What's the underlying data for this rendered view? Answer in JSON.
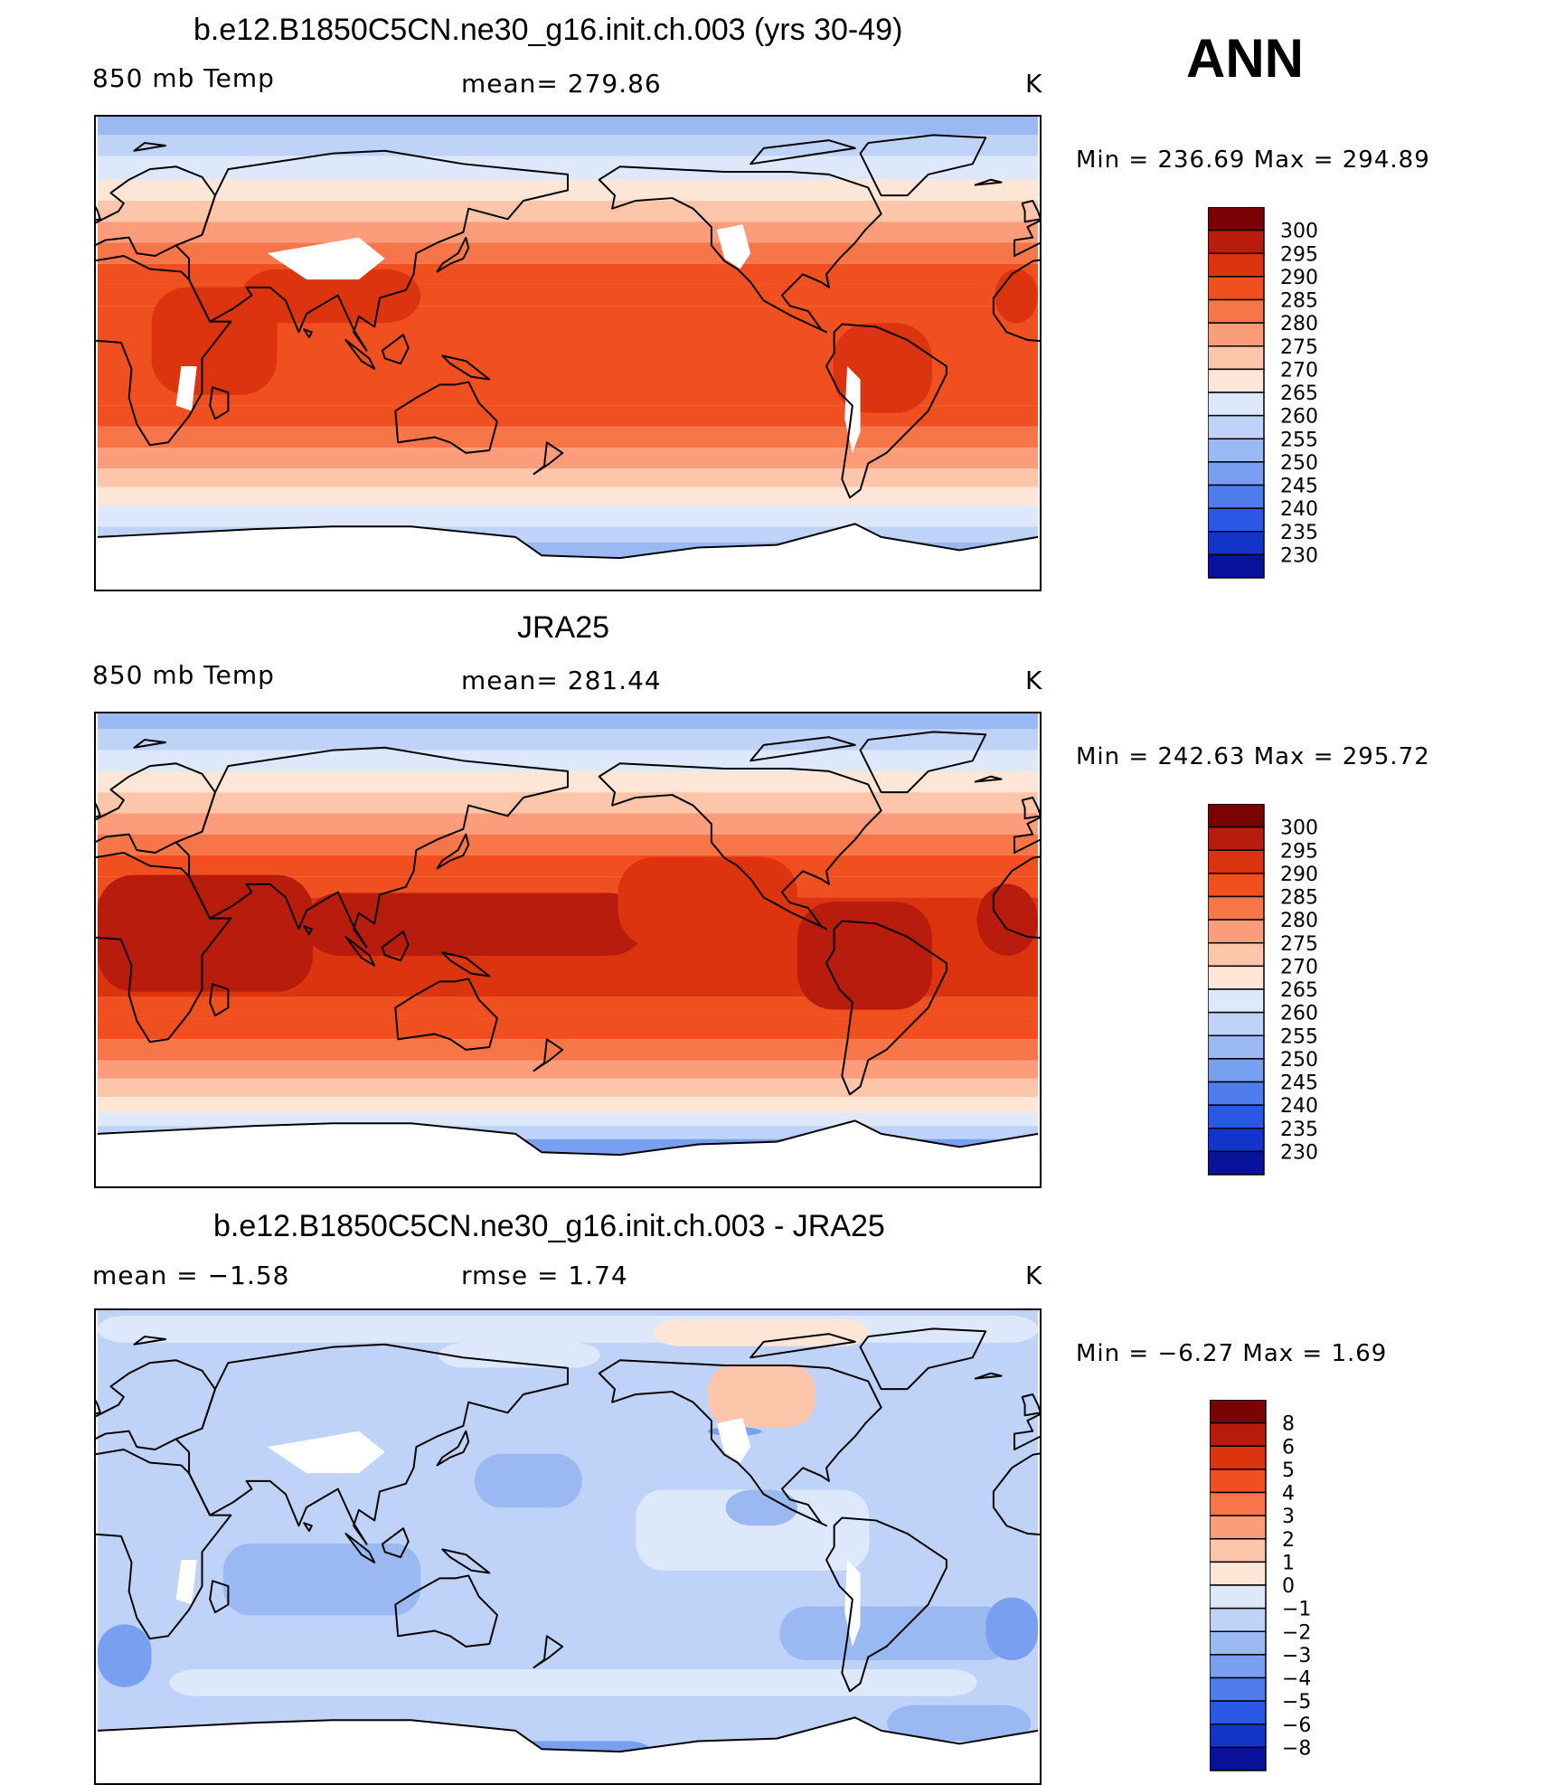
{
  "season": "ANN",
  "palette": {
    "warm": [
      "#7a0403",
      "#b81c0c",
      "#dd3410",
      "#f04f20",
      "#f77649",
      "#fb9d7a",
      "#fdc6ab",
      "#fee6d7"
    ],
    "cool": [
      "#dde9fb",
      "#bed3f7",
      "#9ab9f3",
      "#789ff0",
      "#4f7ded",
      "#2a57e6",
      "#1234c8",
      "#08129a"
    ],
    "land": "#ffffff",
    "coast": "#000000"
  },
  "panels": [
    {
      "title": "b.e12.B1850C5CN.ne30_g16.init.ch.003 (yrs 30-49)",
      "left_label": "850 mb Temp",
      "center_label": "mean=  279.86",
      "units": "K",
      "minmax": "Min  =  236.69  Max  =  294.89",
      "ticks": [
        "300",
        "295",
        "290",
        "285",
        "280",
        "275",
        "270",
        "265",
        "260",
        "255",
        "250",
        "245",
        "240",
        "235",
        "230"
      ],
      "field": "model"
    },
    {
      "title": "JRA25",
      "left_label": "850 mb Temp",
      "center_label": "mean=  281.44",
      "units": "K",
      "minmax": "Min  =  242.63  Max  =  295.72",
      "ticks": [
        "300",
        "295",
        "290",
        "285",
        "280",
        "275",
        "270",
        "265",
        "260",
        "255",
        "250",
        "245",
        "240",
        "235",
        "230"
      ],
      "field": "obs"
    },
    {
      "title": "b.e12.B1850C5CN.ne30_g16.init.ch.003 - JRA25",
      "left_label": "mean  =    −1.58",
      "center_label": "rmse  =     1.74",
      "units": "K",
      "minmax": "Min  =    −6.27  Max  =      1.69",
      "ticks": [
        "8",
        "6",
        "5",
        "4",
        "3",
        "2",
        "1",
        "0",
        "−1",
        "−2",
        "−3",
        "−4",
        "−5",
        "−6",
        "−8"
      ],
      "field": "diff"
    }
  ]
}
